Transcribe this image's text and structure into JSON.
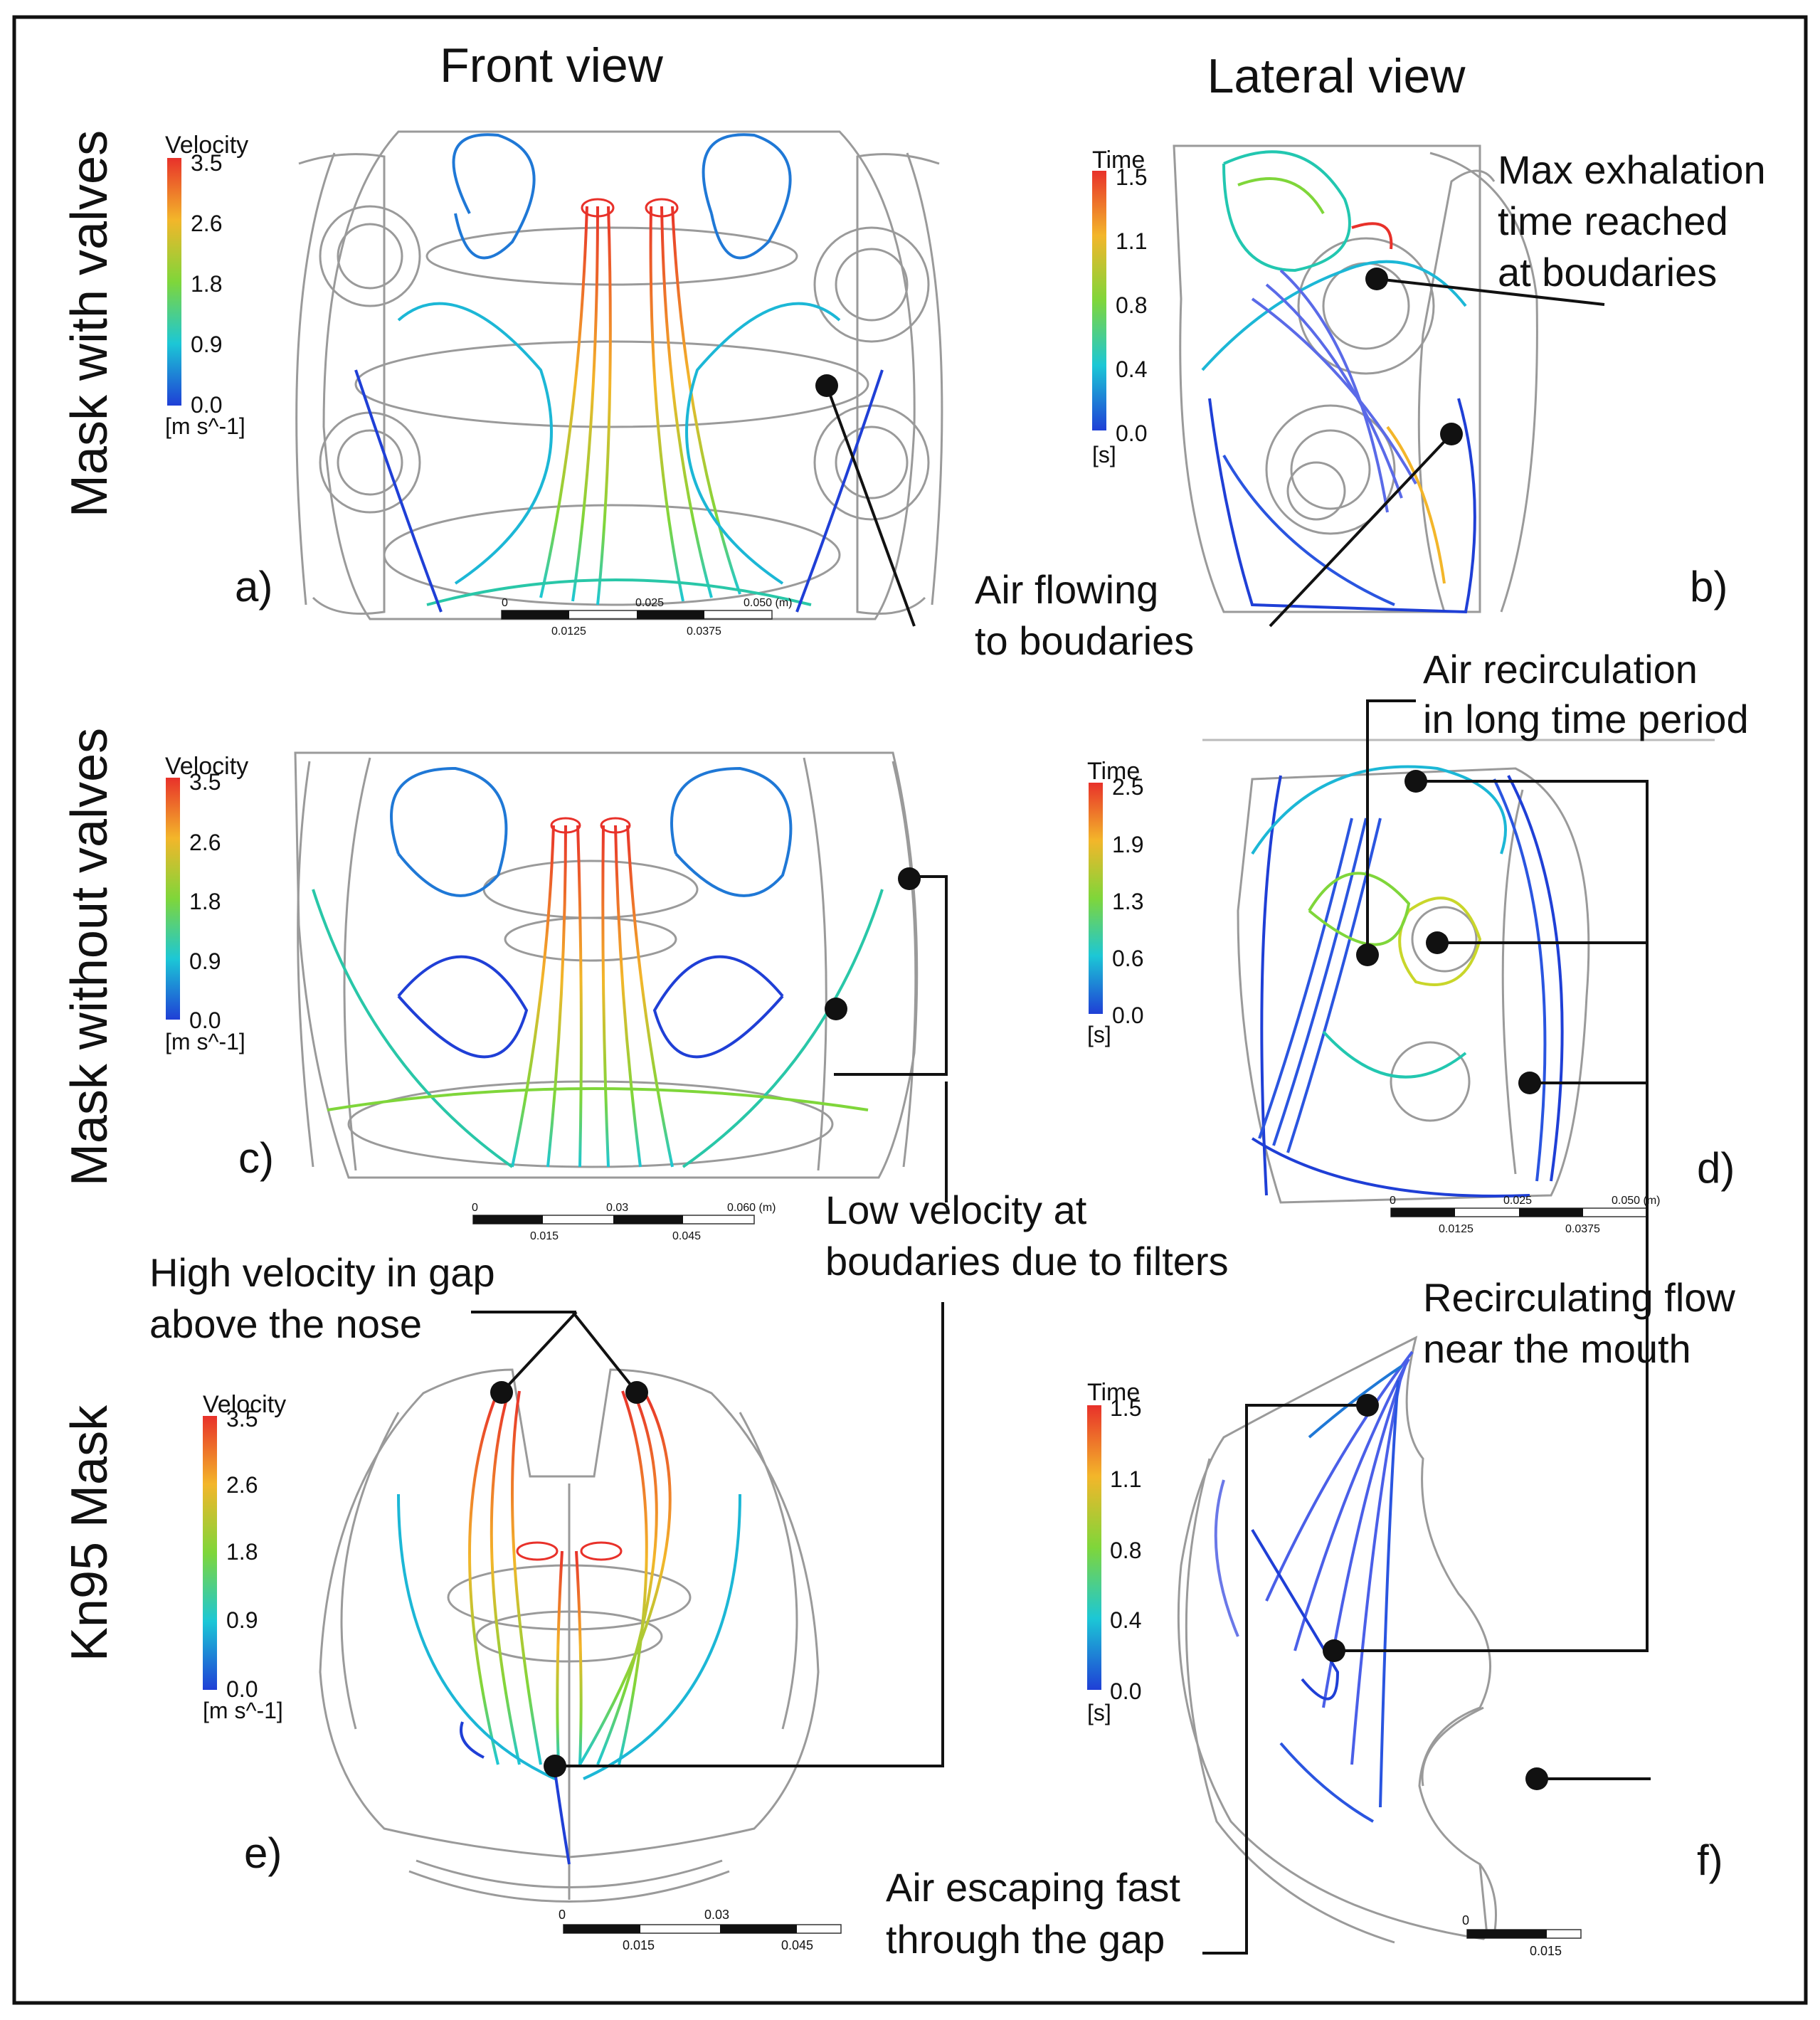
{
  "column_titles": {
    "front": "Front view",
    "lateral": "Lateral view"
  },
  "row_titles": {
    "r1": "Mask with valves",
    "r2": "Mask without valves",
    "r3": "Kn95 Mask"
  },
  "panel_letters": {
    "a": "a)",
    "b": "b)",
    "c": "c)",
    "d": "d)",
    "e": "e)",
    "f": "f)"
  },
  "legends": {
    "a": {
      "title": "Velocity",
      "ticks": [
        "3.5",
        "2.6",
        "1.8",
        "0.9",
        "0.0"
      ],
      "unit": "[m s^-1]"
    },
    "b": {
      "title": "Time",
      "ticks": [
        "1.5",
        "1.1",
        "0.8",
        "0.4",
        "0.0"
      ],
      "unit": "[s]"
    },
    "c": {
      "title": "Velocity",
      "ticks": [
        "3.5",
        "2.6",
        "1.8",
        "0.9",
        "0.0"
      ],
      "unit": "[m s^-1]"
    },
    "d": {
      "title": "Time",
      "ticks": [
        "2.5",
        "1.9",
        "1.3",
        "0.6",
        "0.0"
      ],
      "unit": "[s]"
    },
    "e": {
      "title": "Velocity",
      "ticks": [
        "3.5",
        "2.6",
        "1.8",
        "0.9",
        "0.0"
      ],
      "unit": "[m s^-1]"
    },
    "f": {
      "title": "Time",
      "ticks": [
        "1.5",
        "1.1",
        "0.8",
        "0.4",
        "0.0"
      ],
      "unit": "[s]"
    }
  },
  "scalebars": {
    "a": {
      "top": [
        "0",
        "0.025",
        "0.050 (m)"
      ],
      "bottom": [
        "0.0125",
        "0.0375"
      ]
    },
    "c": {
      "top": [
        "0",
        "0.03",
        "0.060 (m)"
      ],
      "bottom": [
        "0.015",
        "0.045"
      ]
    },
    "d": {
      "top": [
        "0",
        "0.025",
        "0.050 (m)"
      ],
      "bottom": [
        "0.0125",
        "0.0375"
      ]
    },
    "e": {
      "top": [
        "0",
        "0.03"
      ],
      "bottom": [
        "0.015",
        "0.045"
      ]
    },
    "f": {
      "top": [
        "0"
      ],
      "bottom": [
        "0.015"
      ]
    }
  },
  "annotations": {
    "max_exhalation": [
      "Max exhalation",
      "time reached",
      "at boudaries"
    ],
    "air_flowing": [
      "Air flowing",
      "to boudaries"
    ],
    "air_recirculation": [
      "Air recirculation",
      "in long time period"
    ],
    "low_velocity": [
      "Low velocity at",
      "boudaries due to filters"
    ],
    "high_velocity": [
      "High velocity in gap",
      "above the nose"
    ],
    "recirculating_flow": [
      "Recirculating flow",
      "near the mouth"
    ],
    "air_escaping": [
      "Air escaping fast",
      "through the gap"
    ]
  },
  "colors": {
    "colormap": [
      "#e8312a",
      "#f3b62a",
      "#7fd63a",
      "#1cc7d6",
      "#1f3fd6"
    ],
    "frame": "#111111"
  }
}
